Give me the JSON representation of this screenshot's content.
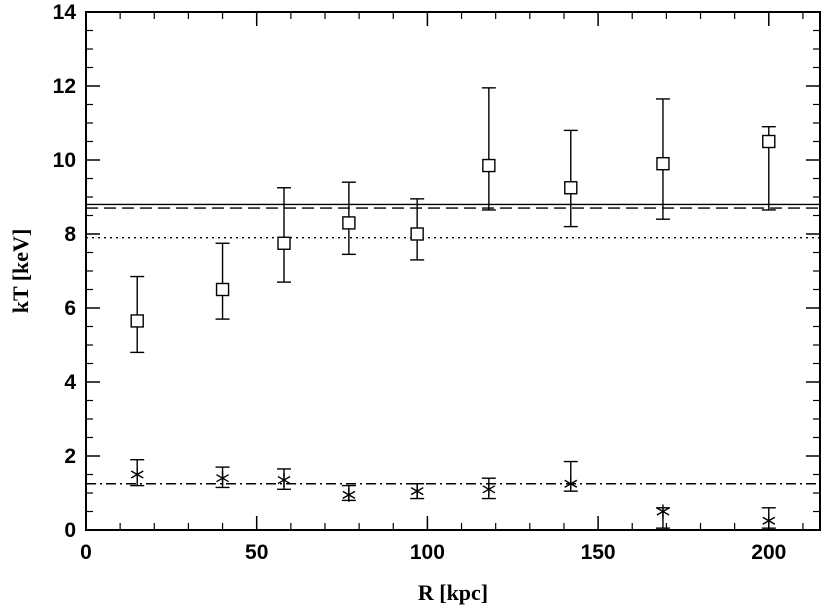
{
  "chart_data": {
    "type": "scatter",
    "title": "",
    "xlabel": "R [kpc]",
    "ylabel": "kT [keV]",
    "xlim": [
      0,
      215
    ],
    "ylim": [
      0,
      14
    ],
    "xticks": [
      0,
      50,
      100,
      150,
      200
    ],
    "yticks": [
      0,
      2,
      4,
      6,
      8,
      10,
      12,
      14
    ],
    "x_minor_step": 10,
    "y_minor_step": 0.5,
    "grid": false,
    "legend": "none",
    "series": [
      {
        "marker": "square",
        "points": [
          {
            "x": 15,
            "y": 5.65,
            "lo": 4.8,
            "hi": 6.85
          },
          {
            "x": 40,
            "y": 6.5,
            "lo": 5.7,
            "hi": 7.75
          },
          {
            "x": 58,
            "y": 7.75,
            "lo": 6.7,
            "hi": 9.25
          },
          {
            "x": 77,
            "y": 8.3,
            "lo": 7.45,
            "hi": 9.4
          },
          {
            "x": 97,
            "y": 8.0,
            "lo": 7.3,
            "hi": 8.95
          },
          {
            "x": 118,
            "y": 9.85,
            "lo": 8.65,
            "hi": 11.95
          },
          {
            "x": 142,
            "y": 9.25,
            "lo": 8.2,
            "hi": 10.8
          },
          {
            "x": 169,
            "y": 9.9,
            "lo": 8.4,
            "hi": 11.65
          },
          {
            "x": 200,
            "y": 10.5,
            "lo": 8.65,
            "hi": 10.9
          }
        ]
      },
      {
        "marker": "asterisk",
        "points": [
          {
            "x": 15,
            "y": 1.5,
            "lo": 1.2,
            "hi": 1.9
          },
          {
            "x": 40,
            "y": 1.4,
            "lo": 1.15,
            "hi": 1.7
          },
          {
            "x": 58,
            "y": 1.35,
            "lo": 1.1,
            "hi": 1.65
          },
          {
            "x": 77,
            "y": 0.95,
            "lo": 0.8,
            "hi": 1.2
          },
          {
            "x": 97,
            "y": 1.05,
            "lo": 0.85,
            "hi": 1.25
          },
          {
            "x": 118,
            "y": 1.1,
            "lo": 0.85,
            "hi": 1.4
          },
          {
            "x": 142,
            "y": 1.25,
            "lo": 1.05,
            "hi": 1.85
          },
          {
            "x": 169,
            "y": 0.5,
            "lo": 0.05,
            "hi": 0.6
          },
          {
            "x": 200,
            "y": 0.25,
            "lo": 0.05,
            "hi": 0.6
          }
        ]
      }
    ],
    "hlines": [
      {
        "y": 8.8,
        "style": "solid"
      },
      {
        "y": 8.7,
        "style": "dashed"
      },
      {
        "y": 7.9,
        "style": "dotted"
      },
      {
        "y": 1.25,
        "style": "dashdot"
      }
    ]
  }
}
